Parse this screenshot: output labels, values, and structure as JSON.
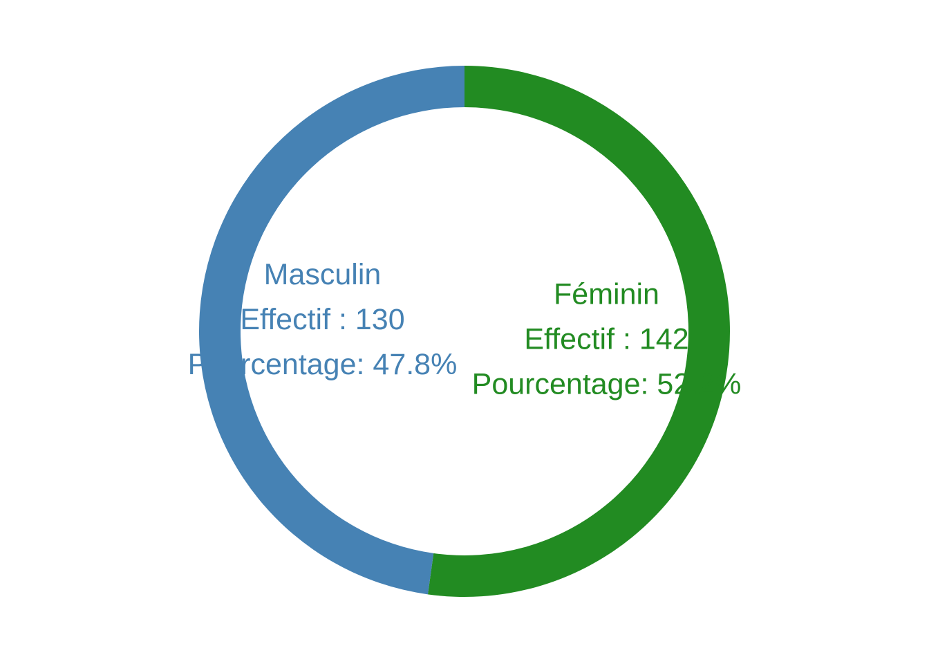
{
  "chart_data": {
    "type": "pie",
    "variant": "donut",
    "start": "top",
    "direction": "clockwise",
    "slices": [
      {
        "category": "Féminin",
        "count": 142,
        "percent": 52.2,
        "color": "#228B22",
        "label_lines": [
          "Féminin",
          "Effectif : 142",
          "Pourcentage: 52.2%"
        ]
      },
      {
        "category": "Masculin",
        "count": 130,
        "percent": 47.8,
        "color": "#4682B4",
        "label_lines": [
          "Masculin",
          "Effectif : 130",
          "Pourcentage: 47.8%"
        ]
      }
    ],
    "legend": "none",
    "grid": false
  }
}
